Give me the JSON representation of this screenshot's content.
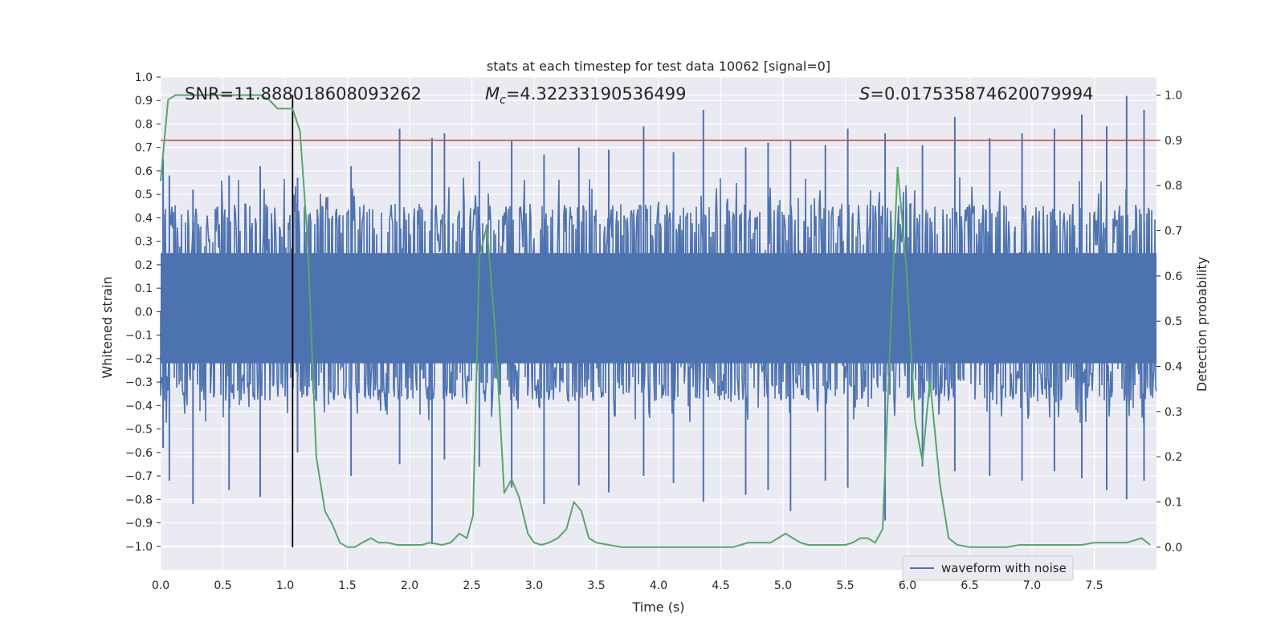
{
  "chart_data": {
    "type": "line",
    "title": "stats at each timestep for test data 10062 [signal=0]",
    "xlabel": "Time (s)",
    "ylabel_left": "Whitened strain",
    "ylabel_right": "Detection probability",
    "xlim": [
      0,
      8
    ],
    "ylim_left": [
      -1.1,
      1.0
    ],
    "ylim_right": [
      -0.05,
      1.04
    ],
    "x_ticks": [
      0.0,
      0.5,
      1.0,
      1.5,
      2.0,
      2.5,
      3.0,
      3.5,
      4.0,
      4.5,
      5.0,
      5.5,
      6.0,
      6.5,
      7.0,
      7.5
    ],
    "x_tick_labels": [
      "0.0",
      "0.5",
      "1.0",
      "1.5",
      "2.0",
      "2.5",
      "3.0",
      "3.5",
      "4.0",
      "4.5",
      "5.0",
      "5.5",
      "6.0",
      "6.5",
      "7.0",
      "7.5"
    ],
    "y_left_ticks": [
      1.0,
      0.9,
      0.8,
      0.7,
      0.6,
      0.5,
      0.4,
      0.3,
      0.2,
      0.1,
      0.0,
      -0.1,
      -0.2,
      -0.3,
      -0.4,
      -0.5,
      -0.6,
      -0.7,
      -0.8,
      -0.9,
      -1.0
    ],
    "y_left_tick_labels": [
      "1.0",
      "0.9",
      "0.8",
      "0.7",
      "0.6",
      "0.5",
      "0.4",
      "0.3",
      "0.2",
      "0.1",
      "0.0",
      "−0.1",
      "−0.2",
      "−0.3",
      "−0.4",
      "−0.5",
      "−0.6",
      "−0.7",
      "−0.8",
      "−0.9",
      "−1.0"
    ],
    "y_right_ticks": [
      1.0,
      0.9,
      0.8,
      0.7,
      0.6,
      0.5,
      0.4,
      0.3,
      0.2,
      0.1,
      0.0
    ],
    "y_right_tick_labels": [
      "1.0",
      "0.9",
      "0.8",
      "0.7",
      "0.6",
      "0.5",
      "0.4",
      "0.3",
      "0.2",
      "0.1",
      "0.0"
    ],
    "annotations": {
      "snr": "SNR=11.888018608093262",
      "mc_symbol": "M",
      "mc_sub": "c",
      "mc_value": "=4.32233190536499",
      "s_symbol": "S",
      "s_value": "=0.017535874620079994"
    },
    "threshold": {
      "axis": "right",
      "value": 0.9,
      "color": "#c44e52"
    },
    "marker_time": 1.06,
    "legend": {
      "label": "waveform with noise",
      "position": "lower-right"
    },
    "waveform": {
      "name": "waveform with noise",
      "color": "#4c72b0",
      "typical_envelope": [
        -0.38,
        0.46
      ],
      "note": "noise trace between approx -0.95 and 0.97"
    },
    "peaks": [
      [
        0.02,
        0.65,
        -0.58
      ],
      [
        0.07,
        0.58,
        -0.72
      ],
      [
        0.26,
        0.52,
        -0.82
      ],
      [
        0.55,
        0.58,
        -0.76
      ],
      [
        0.8,
        0.62,
        -0.79
      ],
      [
        1.1,
        0.57,
        -0.6
      ],
      [
        1.53,
        0.62,
        -0.7
      ],
      [
        1.92,
        0.78,
        -0.65
      ],
      [
        2.18,
        0.74,
        -0.99
      ],
      [
        2.28,
        0.76,
        -0.63
      ],
      [
        2.56,
        0.64,
        -0.66
      ],
      [
        2.82,
        0.73,
        -0.75
      ],
      [
        3.08,
        0.67,
        -0.82
      ],
      [
        3.36,
        0.7,
        -0.74
      ],
      [
        3.6,
        0.69,
        -0.77
      ],
      [
        3.88,
        0.79,
        -0.7
      ],
      [
        4.12,
        0.68,
        -0.73
      ],
      [
        4.36,
        0.86,
        -0.81
      ],
      [
        4.7,
        0.7,
        -0.78
      ],
      [
        4.88,
        0.72,
        -0.76
      ],
      [
        5.06,
        0.73,
        -0.85
      ],
      [
        5.34,
        0.71,
        -0.72
      ],
      [
        5.52,
        0.78,
        -0.75
      ],
      [
        5.82,
        0.76,
        -0.89
      ],
      [
        6.12,
        0.71,
        -0.66
      ],
      [
        6.38,
        0.83,
        -0.68
      ],
      [
        6.66,
        0.74,
        -0.7
      ],
      [
        6.92,
        0.76,
        -0.72
      ],
      [
        7.18,
        0.78,
        -0.68
      ],
      [
        7.4,
        0.84,
        -0.71
      ],
      [
        7.6,
        0.79,
        -0.76
      ],
      [
        7.76,
        0.92,
        -0.8
      ],
      [
        7.9,
        0.86,
        -0.72
      ]
    ],
    "series": [
      {
        "name": "detection probability",
        "axis": "right",
        "color": "#55a868",
        "x": [
          0.0,
          0.06,
          0.12,
          0.2,
          0.3,
          0.4,
          0.5,
          0.6,
          0.7,
          0.8,
          0.87,
          0.94,
          1.0,
          1.06,
          1.12,
          1.18,
          1.25,
          1.32,
          1.38,
          1.44,
          1.5,
          1.56,
          1.62,
          1.69,
          1.75,
          1.82,
          1.9,
          2.0,
          2.1,
          2.16,
          2.26,
          2.33,
          2.4,
          2.46,
          2.51,
          2.56,
          2.62,
          2.69,
          2.76,
          2.82,
          2.88,
          2.95,
          3.0,
          3.06,
          3.12,
          3.19,
          3.26,
          3.32,
          3.38,
          3.44,
          3.5,
          3.6,
          3.7,
          3.8,
          3.9,
          4.0,
          4.2,
          4.4,
          4.6,
          4.66,
          4.72,
          4.78,
          4.84,
          4.9,
          4.96,
          5.02,
          5.08,
          5.14,
          5.2,
          5.3,
          5.4,
          5.5,
          5.56,
          5.62,
          5.68,
          5.74,
          5.8,
          5.86,
          5.92,
          5.99,
          6.06,
          6.12,
          6.18,
          6.26,
          6.33,
          6.4,
          6.5,
          6.6,
          6.7,
          6.8,
          6.9,
          7.0,
          7.1,
          7.2,
          7.3,
          7.4,
          7.5,
          7.6,
          7.7,
          7.76,
          7.82,
          7.88,
          7.95
        ],
        "y": [
          0.81,
          0.99,
          1.0,
          1.0,
          1.0,
          1.0,
          1.0,
          1.0,
          1.0,
          1.0,
          0.99,
          0.97,
          0.97,
          0.97,
          0.92,
          0.68,
          0.2,
          0.08,
          0.05,
          0.01,
          0.0,
          0.0,
          0.01,
          0.02,
          0.01,
          0.01,
          0.005,
          0.005,
          0.005,
          0.01,
          0.005,
          0.01,
          0.03,
          0.02,
          0.07,
          0.64,
          0.71,
          0.47,
          0.12,
          0.15,
          0.11,
          0.03,
          0.01,
          0.005,
          0.01,
          0.02,
          0.04,
          0.1,
          0.08,
          0.02,
          0.01,
          0.005,
          0.0,
          0.0,
          0.0,
          0.0,
          0.0,
          0.0,
          0.0,
          0.005,
          0.01,
          0.01,
          0.01,
          0.01,
          0.02,
          0.03,
          0.02,
          0.01,
          0.005,
          0.005,
          0.005,
          0.005,
          0.01,
          0.02,
          0.02,
          0.01,
          0.04,
          0.45,
          0.84,
          0.62,
          0.28,
          0.19,
          0.37,
          0.14,
          0.02,
          0.005,
          0.0,
          0.0,
          0.0,
          0.0,
          0.005,
          0.005,
          0.005,
          0.005,
          0.005,
          0.005,
          0.01,
          0.01,
          0.01,
          0.01,
          0.015,
          0.02,
          0.005
        ]
      }
    ]
  }
}
